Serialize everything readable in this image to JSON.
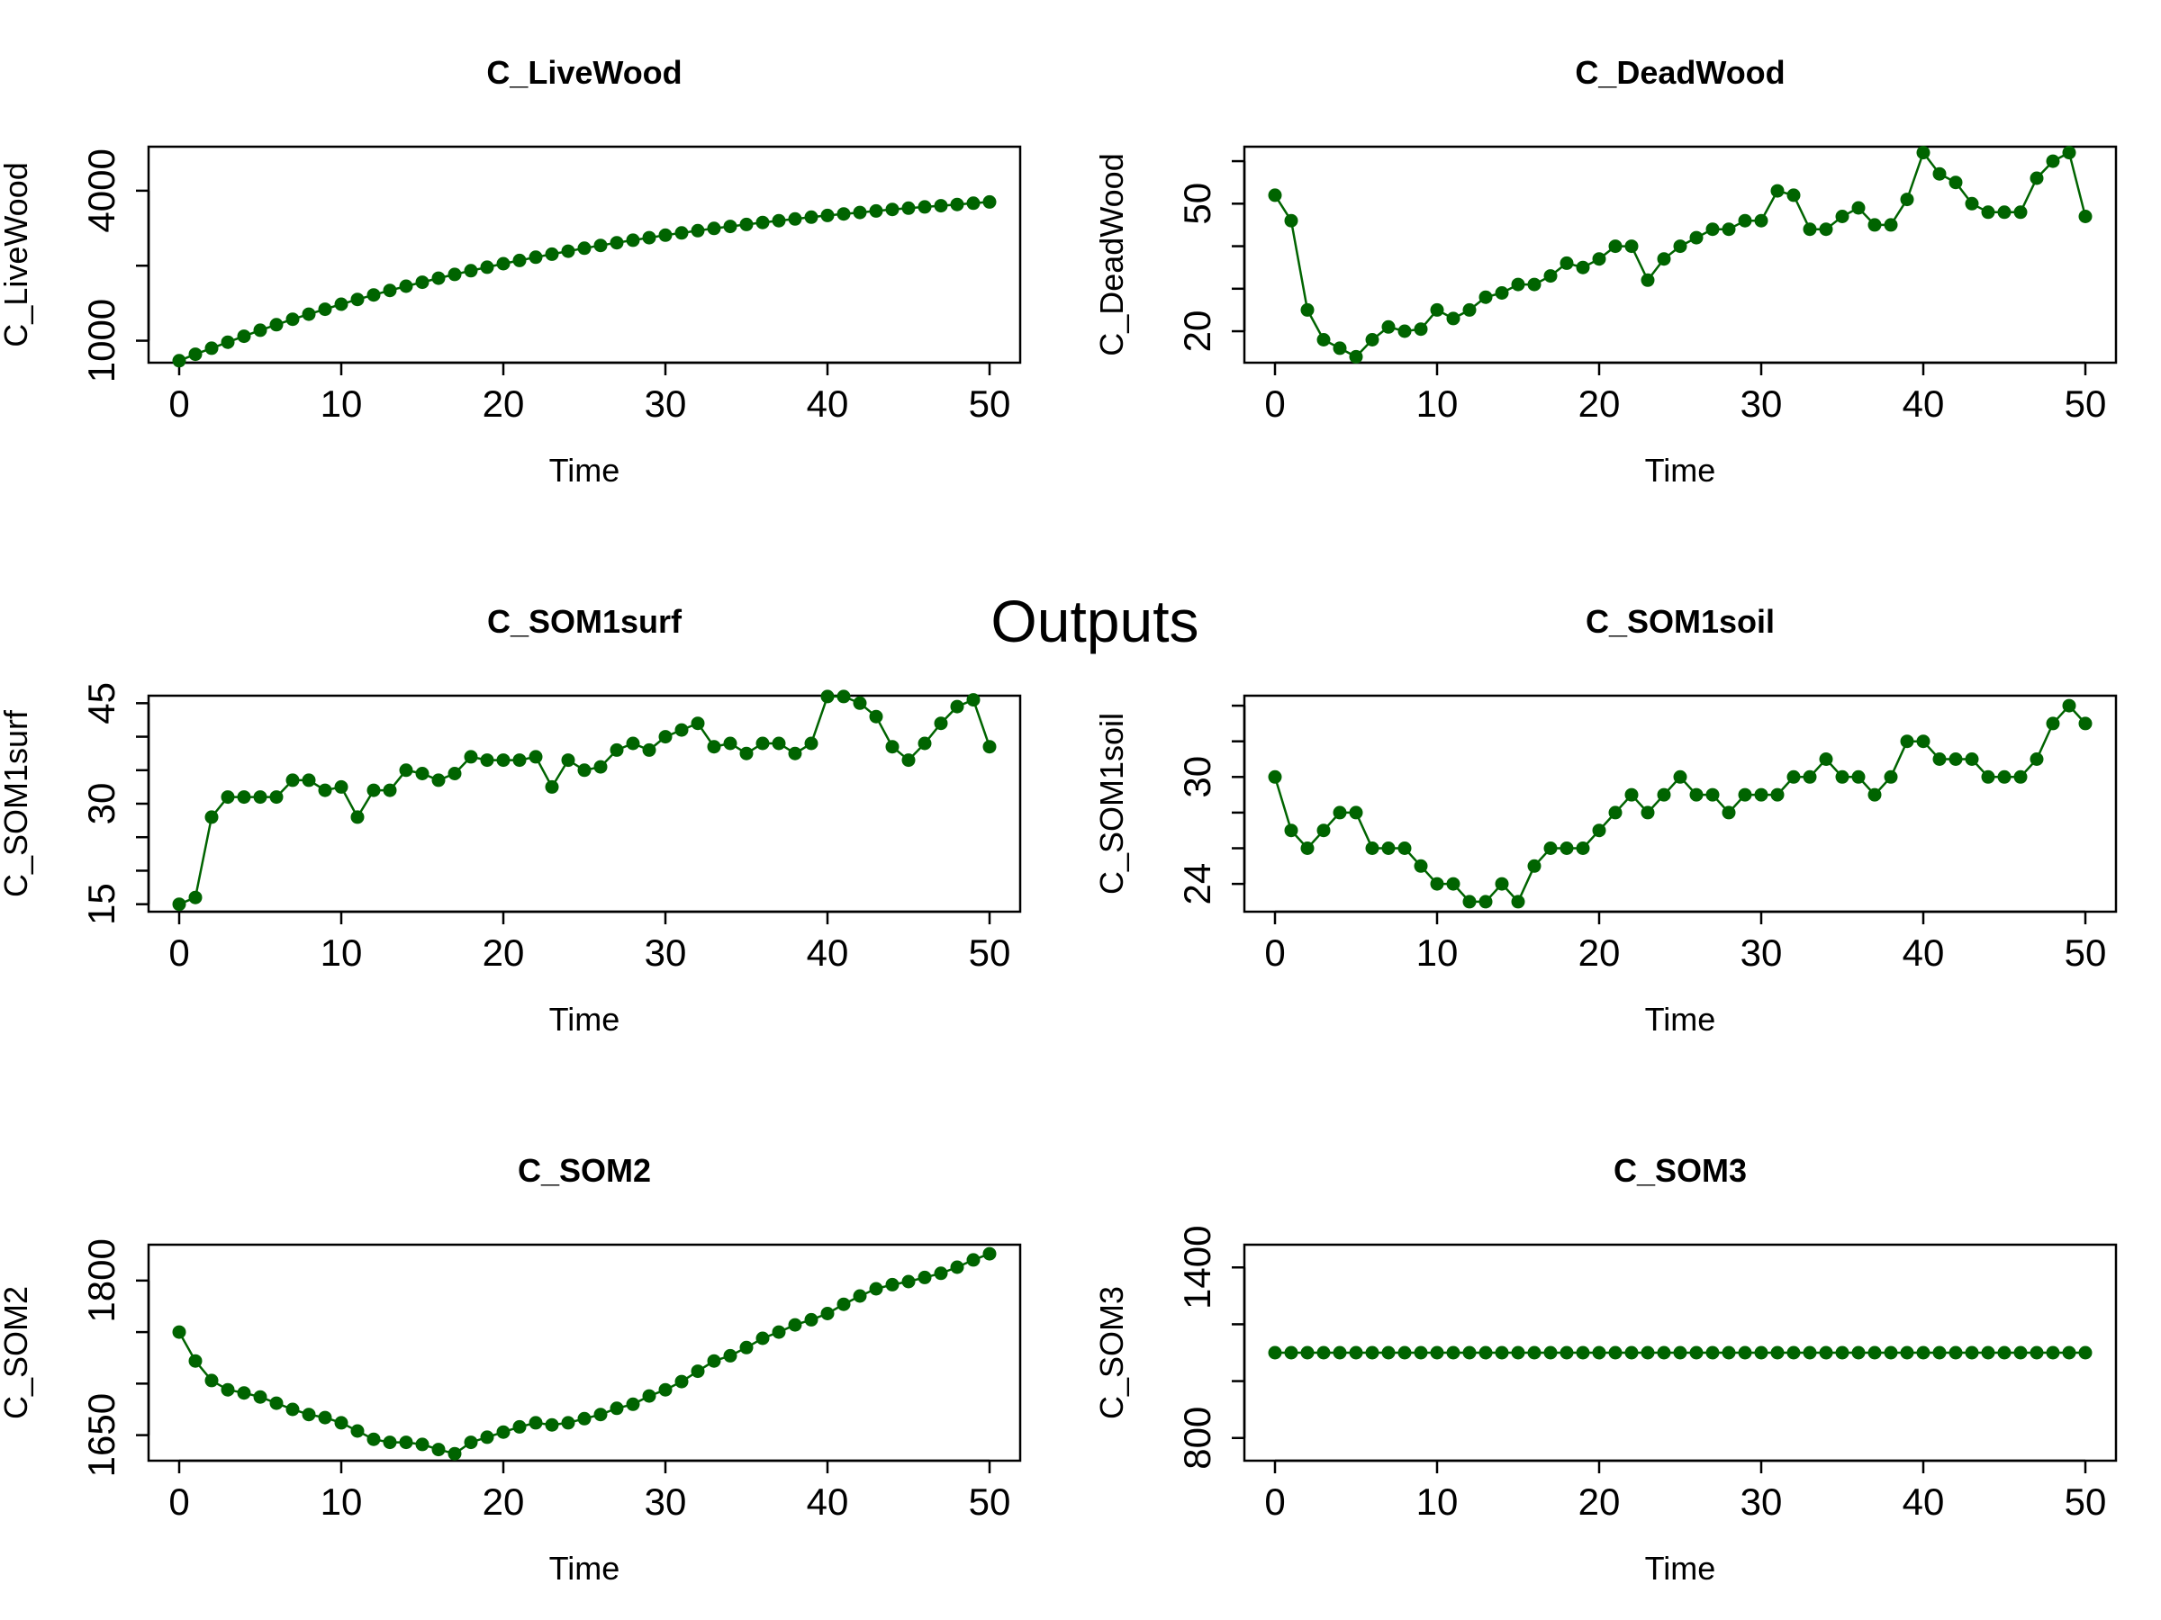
{
  "outer_title": "Outputs",
  "colors": {
    "series": "#006400",
    "axis": "#000000",
    "background": "#ffffff"
  },
  "chart_data": [
    {
      "type": "line",
      "title": "C_LiveWood",
      "xlabel": "Time",
      "ylabel": "C_LiveWood",
      "xlim": [
        0,
        50
      ],
      "ylim": [
        560,
        4880
      ],
      "grid": false,
      "x_ticks": [
        0,
        10,
        20,
        30,
        40,
        50
      ],
      "x_tick_labels": [
        "0",
        "10",
        "20",
        "30",
        "40",
        "50"
      ],
      "y_ticks": [
        1000,
        2500,
        4000
      ],
      "y_tick_labels": [
        "1000",
        "",
        "4000"
      ],
      "y_minor_ticks": [],
      "values": [
        600,
        730,
        850,
        970,
        1090,
        1210,
        1320,
        1430,
        1530,
        1630,
        1730,
        1825,
        1915,
        2005,
        2090,
        2170,
        2250,
        2325,
        2400,
        2470,
        2540,
        2605,
        2670,
        2730,
        2790,
        2850,
        2905,
        2960,
        3010,
        3060,
        3110,
        3155,
        3200,
        3245,
        3285,
        3325,
        3365,
        3400,
        3435,
        3470,
        3505,
        3535,
        3565,
        3595,
        3625,
        3650,
        3675,
        3700,
        3725,
        3750,
        3775
      ]
    },
    {
      "type": "line",
      "title": "C_DeadWood",
      "xlabel": "Time",
      "ylabel": "C_DeadWood",
      "xlim": [
        0,
        50
      ],
      "ylim": [
        12.6,
        63.4
      ],
      "grid": false,
      "x_ticks": [
        0,
        10,
        20,
        30,
        40,
        50
      ],
      "x_tick_labels": [
        "0",
        "10",
        "20",
        "30",
        "40",
        "50"
      ],
      "y_ticks": [
        20,
        50
      ],
      "y_tick_labels": [
        "20",
        "50"
      ],
      "y_minor_ticks": [
        30,
        40,
        60
      ],
      "values": [
        52,
        46,
        25,
        18,
        16,
        14,
        18,
        21,
        20,
        20.5,
        25,
        23,
        25,
        28,
        29,
        31,
        31,
        33,
        36,
        35,
        37,
        40,
        40,
        32,
        37,
        40,
        42,
        44,
        44,
        46,
        46,
        53,
        52,
        44,
        44,
        47,
        49,
        45,
        45,
        51,
        62,
        57,
        55,
        50,
        48,
        48,
        48,
        56,
        60,
        62,
        47
      ]
    },
    {
      "type": "line",
      "title": "C_SOM1surf",
      "xlabel": "Time",
      "ylabel": "C_SOM1surf",
      "xlim": [
        0,
        50
      ],
      "ylim": [
        13.88,
        46.12
      ],
      "grid": false,
      "x_ticks": [
        0,
        10,
        20,
        30,
        40,
        50
      ],
      "x_tick_labels": [
        "0",
        "10",
        "20",
        "30",
        "40",
        "50"
      ],
      "y_ticks": [
        15,
        30,
        45
      ],
      "y_tick_labels": [
        "15",
        "30",
        "45"
      ],
      "y_minor_ticks": [
        20,
        25,
        35,
        40
      ],
      "values": [
        15,
        16,
        28,
        31,
        31,
        31,
        31,
        33.5,
        33.5,
        32,
        32.5,
        28,
        32,
        32,
        35,
        34.5,
        33.5,
        34.5,
        37,
        36.5,
        36.5,
        36.5,
        37,
        32.5,
        36.5,
        35,
        35.5,
        38,
        39,
        38,
        40,
        41,
        42,
        38.5,
        39,
        37.5,
        39,
        39,
        37.5,
        39,
        46,
        46,
        45,
        43,
        38.5,
        36.5,
        39,
        42,
        44.5,
        45.5,
        38.5
      ]
    },
    {
      "type": "line",
      "title": "C_SOM1soil",
      "xlabel": "Time",
      "ylabel": "C_SOM1soil",
      "xlim": [
        0,
        50
      ],
      "ylim": [
        22.44,
        34.56
      ],
      "grid": false,
      "x_ticks": [
        0,
        10,
        20,
        30,
        40,
        50
      ],
      "x_tick_labels": [
        "0",
        "10",
        "20",
        "30",
        "40",
        "50"
      ],
      "y_ticks": [
        24,
        30
      ],
      "y_tick_labels": [
        "24",
        "30"
      ],
      "y_minor_ticks": [
        26,
        28,
        32,
        34
      ],
      "values": [
        30,
        27,
        26,
        27,
        28,
        28,
        26,
        26,
        26,
        25,
        24,
        24,
        23,
        23,
        24,
        23,
        25,
        26,
        26,
        26,
        27,
        28,
        29,
        28,
        29,
        30,
        29,
        29,
        28,
        29,
        29,
        29,
        30,
        30,
        31,
        30,
        30,
        29,
        30,
        32,
        32,
        31,
        31,
        31,
        30,
        30,
        30,
        31,
        33,
        34,
        33
      ]
    },
    {
      "type": "line",
      "title": "C_SOM2",
      "xlabel": "Time",
      "ylabel": "C_SOM2",
      "xlim": [
        0,
        50
      ],
      "ylim": [
        1625.2,
        1834.8
      ],
      "grid": false,
      "x_ticks": [
        0,
        10,
        20,
        30,
        40,
        50
      ],
      "x_tick_labels": [
        "0",
        "10",
        "20",
        "30",
        "40",
        "50"
      ],
      "y_ticks": [
        1650,
        1800
      ],
      "y_tick_labels": [
        "1650",
        "1800"
      ],
      "y_minor_ticks": [
        1700,
        1750
      ],
      "values": [
        1750,
        1722,
        1703,
        1694,
        1691,
        1687,
        1681,
        1675,
        1670,
        1667,
        1662,
        1654,
        1646,
        1643,
        1643,
        1641,
        1636,
        1632,
        1643,
        1648,
        1653,
        1658,
        1662,
        1660,
        1662,
        1666,
        1670,
        1676,
        1680,
        1688,
        1694,
        1702,
        1712,
        1722,
        1727,
        1735,
        1744,
        1750,
        1757,
        1762,
        1768,
        1777,
        1785,
        1792,
        1796,
        1799,
        1803,
        1807,
        1813,
        1820,
        1826
      ]
    },
    {
      "type": "line",
      "title": "C_SOM3",
      "xlabel": "Time",
      "ylabel": "C_SOM3",
      "xlim": [
        0,
        50
      ],
      "ylim": [
        720,
        1480
      ],
      "grid": false,
      "x_ticks": [
        0,
        10,
        20,
        30,
        40,
        50
      ],
      "x_tick_labels": [
        "0",
        "10",
        "20",
        "30",
        "40",
        "50"
      ],
      "y_ticks": [
        800,
        1400
      ],
      "y_tick_labels": [
        "800",
        "1400"
      ],
      "y_minor_ticks": [
        1000,
        1200
      ],
      "values": [
        1100,
        1100,
        1100,
        1100,
        1100,
        1100,
        1100,
        1100,
        1100,
        1100,
        1100,
        1100,
        1100,
        1100,
        1100,
        1100,
        1100,
        1100,
        1100,
        1100,
        1100,
        1100,
        1100,
        1100,
        1100,
        1100,
        1100,
        1100,
        1100,
        1100,
        1100,
        1100,
        1100,
        1100,
        1100,
        1100,
        1100,
        1100,
        1100,
        1100,
        1100,
        1100,
        1100,
        1100,
        1100,
        1100,
        1100,
        1100,
        1100,
        1100,
        1100
      ]
    }
  ]
}
